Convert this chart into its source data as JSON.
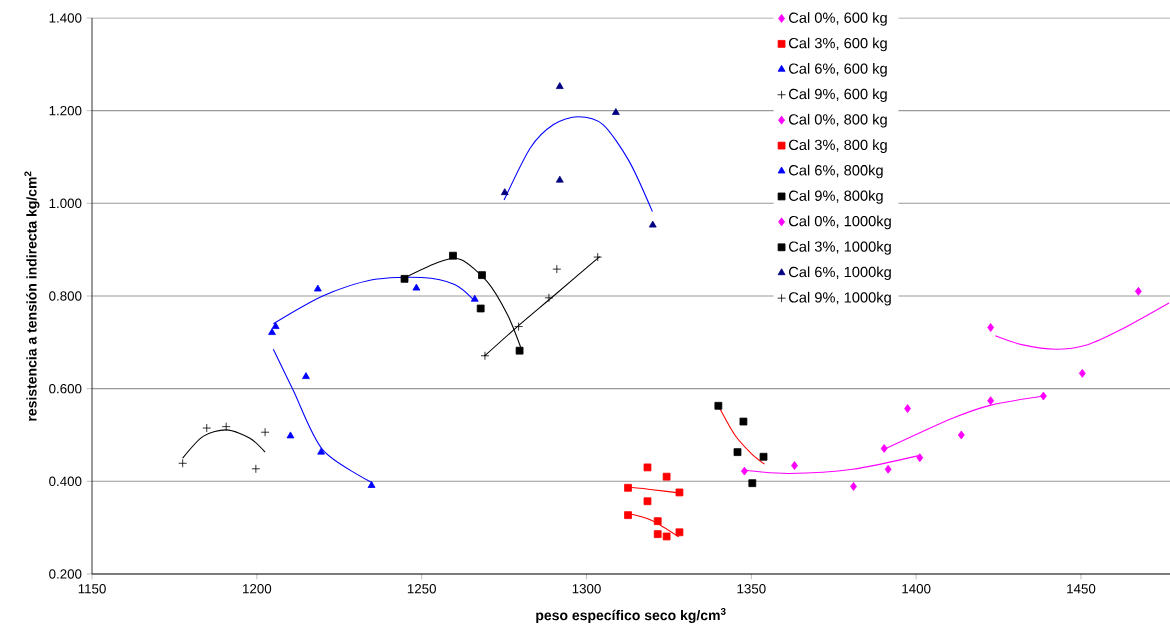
{
  "chart_data": {
    "type": "scatter",
    "xlabel": "peso específico seco kg/cm$^{3}$",
    "ylabel": "resistencia a tensión indirecta kg/cm$^{2}$",
    "xlim": [
      1150,
      1477
    ],
    "xticks": [
      1150,
      1200,
      1250,
      1300,
      1350,
      1400,
      1450
    ],
    "ylim": [
      0.2,
      1.4
    ],
    "yticks": [
      {
        "value": 0.2,
        "label": "0.200"
      },
      {
        "value": 0.4,
        "label": "0.400"
      },
      {
        "value": 0.6,
        "label": "0.600"
      },
      {
        "value": 0.8,
        "label": "0.800"
      },
      {
        "value": 1.0,
        "label": "1.000"
      },
      {
        "value": 1.2,
        "label": "1.200"
      },
      {
        "value": 1.4,
        "label": "1.400"
      }
    ],
    "grid": "y",
    "legend": "top right",
    "series": [
      {
        "name": "Cal 0%, 600 kg",
        "color": "#ff00ff",
        "marker": "diamond",
        "x": [
          1347.9,
          1363.1,
          1381,
          1390.3,
          1401.1
        ],
        "values": [
          0.422,
          0.434,
          0.389,
          0.471,
          0.451
        ]
      },
      {
        "name": "Cal 3%, 600 kg",
        "color": "#ff0000",
        "marker": "square",
        "x": [
          1312.6,
          1318.5,
          1321.6,
          1324.3,
          1328.2
        ],
        "values": [
          0.327,
          0.357,
          0.286,
          0.281,
          0.29
        ]
      },
      {
        "name": "Cal 6%, 600 kg",
        "color": "#0000ff",
        "marker": "triangle",
        "x": [
          1204.6,
          1214.9,
          1210.2,
          1219.5,
          1234.8
        ],
        "values": [
          0.721,
          0.626,
          0.498,
          0.463,
          0.391
        ]
      },
      {
        "name": "Cal 9%, 600 kg",
        "color": "#000000",
        "marker": "cross",
        "x": [
          1177.5,
          1184.8,
          1190.7,
          1202.5,
          1199.7
        ],
        "values": [
          0.439,
          0.515,
          0.518,
          0.506,
          0.427
        ]
      },
      {
        "name": "Cal 0%, 800 kg",
        "color": "#ff00ff",
        "marker": "diamond",
        "x": [
          1391.5,
          1397.4,
          1413.7,
          1422.6,
          1438.6
        ],
        "values": [
          0.426,
          0.557,
          0.5,
          0.574,
          0.584
        ]
      },
      {
        "name": "Cal 3%, 800 kg",
        "color": "#ff0000",
        "marker": "square",
        "x": [
          1312.6,
          1318.5,
          1324.3,
          1328.2,
          1321.6
        ],
        "values": [
          0.386,
          0.43,
          0.41,
          0.376,
          0.314
        ]
      },
      {
        "name": "Cal 6%, 800kg",
        "color": "#0000ff",
        "marker": "triangle",
        "x": [
          1205.7,
          1218.5,
          1248.4,
          1266.1
        ],
        "values": [
          0.734,
          0.815,
          0.817,
          0.793
        ]
      },
      {
        "name": "Cal 9%, 800kg",
        "color": "#000000",
        "marker": "square",
        "x": [
          1244.8,
          1259.5,
          1268.3,
          1267.9,
          1279.7
        ],
        "values": [
          0.837,
          0.887,
          0.845,
          0.773,
          0.682
        ]
      },
      {
        "name": "Cal 0%, 1000kg",
        "color": "#ff00ff",
        "marker": "diamond",
        "x": [
          1422.6,
          1450.4,
          1467.4
        ],
        "values": [
          0.732,
          0.633,
          0.81
        ]
      },
      {
        "name": "Cal 3%, 1000kg",
        "color": "#000000",
        "marker": "square",
        "x": [
          1340.0,
          1347.6,
          1345.8,
          1353.7,
          1350.3
        ],
        "values": [
          0.563,
          0.529,
          0.463,
          0.453,
          0.396
        ]
      },
      {
        "name": "Cal 6%, 1000kg",
        "color": "#000080",
        "marker": "triangle",
        "x": [
          1275.2,
          1291.9,
          1291.9,
          1308.9,
          1320.1
        ],
        "values": [
          1.023,
          1.252,
          1.05,
          1.196,
          0.953
        ]
      },
      {
        "name": "Cal 9%, 1000kg",
        "color": "#000000",
        "marker": "cross",
        "x": [
          1269.2,
          1279.4,
          1288.6,
          1291,
          1303.4
        ],
        "values": [
          0.671,
          0.734,
          0.796,
          0.858,
          0.884
        ]
      },
      {
        "type": "line",
        "color": "#ff00ff",
        "x": [
          1347.9,
          1361.5,
          1380.7,
          1401.1
        ],
        "values": [
          0.424,
          0.417,
          0.426,
          0.456
        ]
      },
      {
        "type": "line",
        "color": "#ff0000",
        "x": [
          1313,
          1320,
          1328
        ],
        "values": [
          0.33,
          0.315,
          0.28
        ]
      },
      {
        "type": "line",
        "color": "#0000ff",
        "x": [
          1205,
          1211,
          1220,
          1235
        ],
        "values": [
          0.685,
          0.597,
          0.468,
          0.397
        ]
      },
      {
        "type": "line",
        "color": "#000000",
        "x": [
          1177.5,
          1183.7,
          1190.8,
          1197.9,
          1202.5
        ],
        "values": [
          0.45,
          0.497,
          0.511,
          0.493,
          0.463
        ]
      },
      {
        "type": "line",
        "color": "#ff00ff",
        "x": [
          1390,
          1411,
          1423,
          1438.6
        ],
        "values": [
          0.468,
          0.536,
          0.565,
          0.584
        ]
      },
      {
        "type": "line",
        "color": "#ff0000",
        "x": [
          1313,
          1320,
          1328
        ],
        "values": [
          0.387,
          0.382,
          0.375
        ]
      },
      {
        "type": "line",
        "color": "#0000ff",
        "x": [
          1205,
          1220,
          1235,
          1250,
          1260,
          1266
        ],
        "values": [
          0.74,
          0.8,
          0.835,
          0.84,
          0.825,
          0.79
        ]
      },
      {
        "type": "line",
        "color": "#000000",
        "x": [
          1245,
          1255.5,
          1262,
          1270,
          1276,
          1280
        ],
        "values": [
          0.84,
          0.874,
          0.878,
          0.83,
          0.76,
          0.69
        ]
      },
      {
        "type": "line",
        "color": "#ff00ff",
        "x": [
          1424,
          1432,
          1442.4,
          1452,
          1462,
          1476.7
        ],
        "values": [
          0.714,
          0.695,
          0.685,
          0.695,
          0.727,
          0.785
        ]
      },
      {
        "type": "line",
        "color": "#ff0000",
        "x": [
          1340,
          1345,
          1350,
          1354
        ],
        "values": [
          0.563,
          0.5,
          0.46,
          0.437
        ]
      },
      {
        "type": "line",
        "color": "#0000ff",
        "x": [
          1275,
          1283,
          1290,
          1297.4,
          1305,
          1313,
          1320
        ],
        "values": [
          1.007,
          1.12,
          1.17,
          1.187,
          1.17,
          1.09,
          0.982
        ]
      },
      {
        "type": "line",
        "color": "#000000",
        "x": [
          1269,
          1280,
          1290,
          1304
        ],
        "values": [
          0.67,
          0.74,
          0.8,
          0.885
        ]
      }
    ]
  }
}
